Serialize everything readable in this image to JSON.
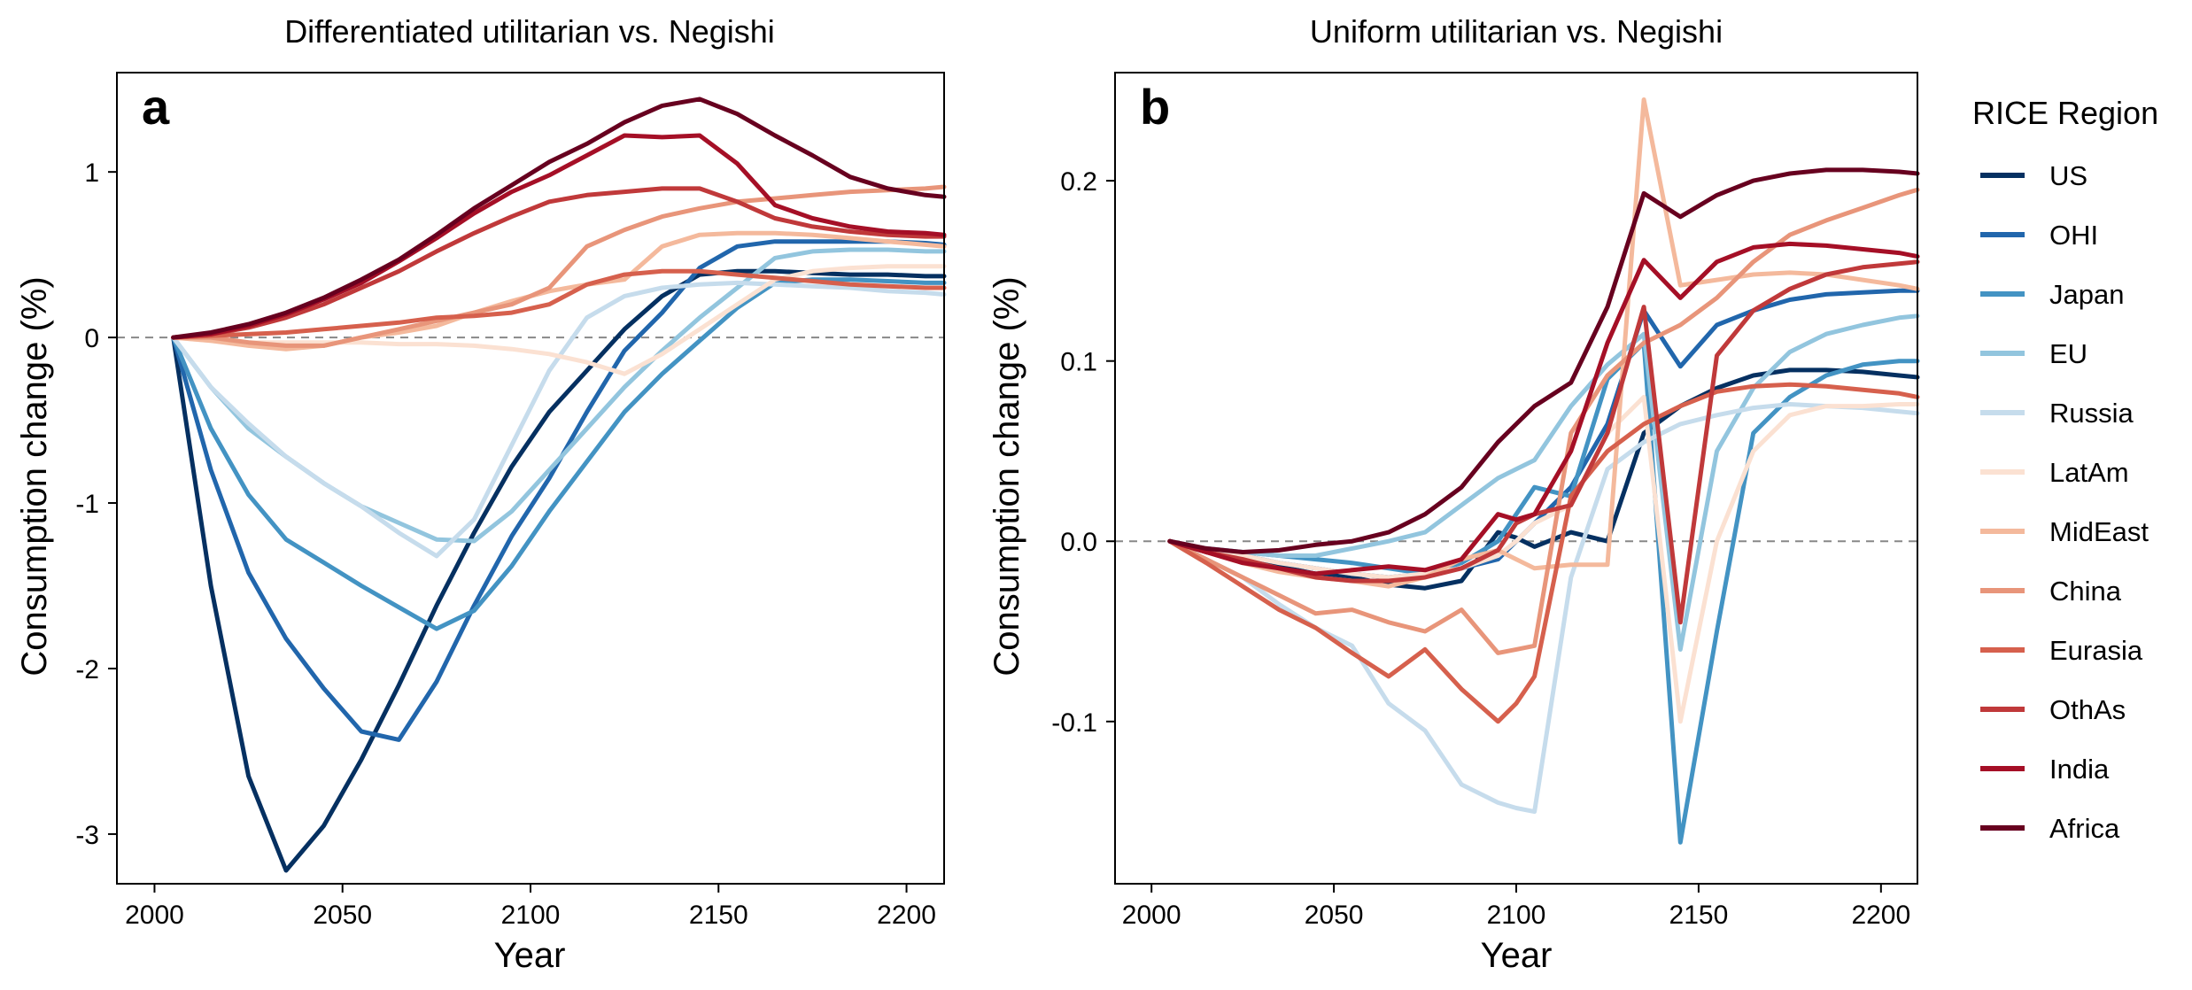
{
  "legend_title": "RICE Region",
  "chart_data": [
    {
      "type": "line",
      "panel_label": "a",
      "title": "Differentiated utilitarian vs. Negishi",
      "xlabel": "Year",
      "ylabel": "Consumption change (%)",
      "xlim": [
        1990,
        2210
      ],
      "ylim": [
        -3.3,
        1.6
      ],
      "xticks": [
        2000,
        2050,
        2100,
        2150,
        2200
      ],
      "yticks": [
        -3,
        -2,
        -1,
        0,
        1
      ],
      "ytick_labels": [
        "-3",
        "-2",
        "-1",
        "0",
        "1"
      ],
      "x": [
        2005,
        2015,
        2025,
        2035,
        2045,
        2055,
        2065,
        2075,
        2085,
        2095,
        2105,
        2115,
        2125,
        2135,
        2145,
        2155,
        2165,
        2175,
        2185,
        2195,
        2205,
        2210
      ],
      "series": [
        {
          "name": "US",
          "color": "#053061",
          "values": [
            0,
            -1.5,
            -2.65,
            -3.22,
            -2.95,
            -2.55,
            -2.1,
            -1.62,
            -1.18,
            -0.78,
            -0.45,
            -0.2,
            0.05,
            0.25,
            0.38,
            0.4,
            0.4,
            0.39,
            0.38,
            0.38,
            0.37,
            0.37
          ]
        },
        {
          "name": "OHI",
          "color": "#2166ac",
          "values": [
            0,
            -0.8,
            -1.42,
            -1.82,
            -2.12,
            -2.38,
            -2.43,
            -2.08,
            -1.62,
            -1.2,
            -0.85,
            -0.45,
            -0.08,
            0.15,
            0.42,
            0.55,
            0.58,
            0.58,
            0.58,
            0.58,
            0.57,
            0.56
          ]
        },
        {
          "name": "Japan",
          "color": "#4393c3",
          "values": [
            0,
            -0.55,
            -0.95,
            -1.22,
            -1.36,
            -1.5,
            -1.63,
            -1.76,
            -1.65,
            -1.38,
            -1.05,
            -0.75,
            -0.45,
            -0.22,
            -0.02,
            0.18,
            0.33,
            0.35,
            0.35,
            0.34,
            0.33,
            0.33
          ]
        },
        {
          "name": "EU",
          "color": "#92c5de",
          "values": [
            0,
            -0.3,
            -0.55,
            -0.72,
            -0.88,
            -1.02,
            -1.12,
            -1.22,
            -1.23,
            -1.05,
            -0.8,
            -0.55,
            -0.3,
            -0.08,
            0.12,
            0.3,
            0.48,
            0.52,
            0.53,
            0.53,
            0.52,
            0.52
          ]
        },
        {
          "name": "Russia",
          "color": "#c6dcec",
          "values": [
            0,
            -0.3,
            -0.52,
            -0.72,
            -0.88,
            -1.02,
            -1.18,
            -1.32,
            -1.1,
            -0.65,
            -0.2,
            0.12,
            0.25,
            0.3,
            0.32,
            0.33,
            0.32,
            0.31,
            0.3,
            0.28,
            0.27,
            0.26
          ]
        },
        {
          "name": "LatAm",
          "color": "#fbe1d2",
          "values": [
            0,
            -0.02,
            -0.03,
            -0.03,
            -0.03,
            -0.03,
            -0.04,
            -0.04,
            -0.05,
            -0.07,
            -0.1,
            -0.15,
            -0.22,
            -0.1,
            0.05,
            0.2,
            0.35,
            0.4,
            0.42,
            0.43,
            0.43,
            0.43
          ]
        },
        {
          "name": "MidEast",
          "color": "#f4b99c",
          "values": [
            0,
            -0.02,
            -0.05,
            -0.07,
            -0.05,
            0.0,
            0.03,
            0.07,
            0.15,
            0.22,
            0.28,
            0.32,
            0.35,
            0.55,
            0.62,
            0.63,
            0.63,
            0.62,
            0.6,
            0.58,
            0.56,
            0.55
          ]
        },
        {
          "name": "China",
          "color": "#e8957a",
          "values": [
            0,
            0.0,
            -0.03,
            -0.05,
            -0.05,
            0.0,
            0.05,
            0.1,
            0.15,
            0.2,
            0.3,
            0.55,
            0.65,
            0.73,
            0.78,
            0.82,
            0.84,
            0.86,
            0.88,
            0.89,
            0.9,
            0.91
          ]
        },
        {
          "name": "Eurasia",
          "color": "#d6604d",
          "values": [
            0,
            0.01,
            0.02,
            0.03,
            0.05,
            0.07,
            0.09,
            0.12,
            0.13,
            0.15,
            0.2,
            0.32,
            0.38,
            0.4,
            0.4,
            0.38,
            0.36,
            0.34,
            0.32,
            0.31,
            0.3,
            0.3
          ]
        },
        {
          "name": "OthAs",
          "color": "#c0393a",
          "values": [
            0,
            0.02,
            0.06,
            0.12,
            0.2,
            0.3,
            0.4,
            0.52,
            0.63,
            0.73,
            0.82,
            0.86,
            0.88,
            0.9,
            0.9,
            0.82,
            0.72,
            0.67,
            0.64,
            0.62,
            0.61,
            0.61
          ]
        },
        {
          "name": "India",
          "color": "#a50f26",
          "values": [
            0,
            0.02,
            0.07,
            0.14,
            0.23,
            0.33,
            0.46,
            0.6,
            0.75,
            0.88,
            0.98,
            1.1,
            1.22,
            1.21,
            1.22,
            1.05,
            0.8,
            0.72,
            0.67,
            0.64,
            0.63,
            0.62
          ]
        },
        {
          "name": "Africa",
          "color": "#67001f",
          "values": [
            0,
            0.03,
            0.08,
            0.15,
            0.24,
            0.35,
            0.47,
            0.62,
            0.78,
            0.92,
            1.06,
            1.17,
            1.3,
            1.4,
            1.44,
            1.35,
            1.22,
            1.1,
            0.97,
            0.9,
            0.86,
            0.85
          ]
        }
      ]
    },
    {
      "type": "line",
      "panel_label": "b",
      "title": "Uniform utilitarian vs. Negishi",
      "xlabel": "Year",
      "ylabel": "Consumption change (%)",
      "xlim": [
        1990,
        2210
      ],
      "ylim": [
        -0.19,
        0.26
      ],
      "xticks": [
        2000,
        2050,
        2100,
        2150,
        2200
      ],
      "yticks": [
        -0.1,
        0.0,
        0.1,
        0.2
      ],
      "ytick_labels": [
        "-0.1",
        "0.0",
        "0.1",
        "0.2"
      ],
      "x": [
        2005,
        2015,
        2025,
        2035,
        2045,
        2055,
        2065,
        2075,
        2085,
        2095,
        2100,
        2105,
        2115,
        2125,
        2135,
        2145,
        2155,
        2165,
        2175,
        2185,
        2195,
        2205,
        2210
      ],
      "series": [
        {
          "name": "US",
          "color": "#053061",
          "values": [
            0,
            -0.006,
            -0.01,
            -0.014,
            -0.018,
            -0.02,
            -0.024,
            -0.026,
            -0.022,
            0.005,
            0.002,
            -0.003,
            0.005,
            0.0,
            0.06,
            0.075,
            0.085,
            0.092,
            0.095,
            0.095,
            0.094,
            0.092,
            0.091
          ]
        },
        {
          "name": "OHI",
          "color": "#2166ac",
          "values": [
            0,
            -0.005,
            -0.008,
            -0.012,
            -0.015,
            -0.018,
            -0.02,
            -0.018,
            -0.015,
            -0.01,
            0.0,
            0.01,
            0.03,
            0.065,
            0.128,
            0.097,
            0.12,
            0.128,
            0.134,
            0.137,
            0.138,
            0.139,
            0.139
          ]
        },
        {
          "name": "Japan",
          "color": "#4393c3",
          "values": [
            0,
            -0.004,
            -0.006,
            -0.008,
            -0.01,
            -0.012,
            -0.015,
            -0.018,
            -0.012,
            0.0,
            0.015,
            0.03,
            0.025,
            0.09,
            0.11,
            -0.167,
            -0.05,
            0.06,
            0.08,
            0.092,
            0.098,
            0.1,
            0.1
          ]
        },
        {
          "name": "EU",
          "color": "#92c5de",
          "values": [
            0,
            -0.004,
            -0.006,
            -0.008,
            -0.008,
            -0.004,
            0.0,
            0.005,
            0.02,
            0.035,
            0.04,
            0.045,
            0.075,
            0.098,
            0.115,
            -0.06,
            0.05,
            0.085,
            0.105,
            0.115,
            0.12,
            0.124,
            0.125
          ]
        },
        {
          "name": "Russia",
          "color": "#c6dcec",
          "values": [
            0,
            -0.01,
            -0.02,
            -0.035,
            -0.048,
            -0.058,
            -0.09,
            -0.105,
            -0.135,
            -0.145,
            -0.148,
            -0.15,
            -0.02,
            0.04,
            0.055,
            0.065,
            0.07,
            0.074,
            0.076,
            0.075,
            0.074,
            0.072,
            0.071
          ]
        },
        {
          "name": "LatAm",
          "color": "#fbe1d2",
          "values": [
            0,
            -0.004,
            -0.008,
            -0.012,
            -0.015,
            -0.018,
            -0.02,
            -0.018,
            -0.015,
            -0.008,
            0.0,
            0.01,
            0.02,
            0.06,
            0.08,
            -0.1,
            0.0,
            0.05,
            0.07,
            0.075,
            0.075,
            0.076,
            0.076
          ]
        },
        {
          "name": "MidEast",
          "color": "#f4b99c",
          "values": [
            0,
            -0.006,
            -0.012,
            -0.017,
            -0.02,
            -0.022,
            -0.025,
            -0.02,
            -0.01,
            -0.005,
            -0.01,
            -0.015,
            -0.013,
            -0.013,
            0.245,
            0.142,
            0.145,
            0.148,
            0.149,
            0.148,
            0.145,
            0.142,
            0.14
          ]
        },
        {
          "name": "China",
          "color": "#e8957a",
          "values": [
            0,
            -0.01,
            -0.02,
            -0.03,
            -0.04,
            -0.038,
            -0.045,
            -0.05,
            -0.038,
            -0.062,
            -0.06,
            -0.058,
            0.06,
            0.092,
            0.11,
            0.12,
            0.135,
            0.155,
            0.17,
            0.178,
            0.185,
            0.192,
            0.195
          ]
        },
        {
          "name": "Eurasia",
          "color": "#d6604d",
          "values": [
            0,
            -0.012,
            -0.025,
            -0.038,
            -0.048,
            -0.062,
            -0.075,
            -0.06,
            -0.082,
            -0.1,
            -0.09,
            -0.075,
            0.025,
            0.05,
            0.065,
            0.075,
            0.083,
            0.086,
            0.087,
            0.086,
            0.084,
            0.082,
            0.08
          ]
        },
        {
          "name": "OthAs",
          "color": "#c0393a",
          "values": [
            0,
            -0.006,
            -0.01,
            -0.015,
            -0.02,
            -0.022,
            -0.022,
            -0.02,
            -0.015,
            -0.005,
            0.01,
            0.015,
            0.02,
            0.06,
            0.13,
            -0.045,
            0.103,
            0.128,
            0.14,
            0.148,
            0.152,
            0.154,
            0.155
          ]
        },
        {
          "name": "India",
          "color": "#a50f26",
          "values": [
            0,
            -0.006,
            -0.012,
            -0.015,
            -0.018,
            -0.016,
            -0.014,
            -0.016,
            -0.01,
            0.015,
            0.012,
            0.015,
            0.05,
            0.11,
            0.156,
            0.135,
            0.155,
            0.163,
            0.165,
            0.164,
            0.162,
            0.16,
            0.158
          ]
        },
        {
          "name": "Africa",
          "color": "#67001f",
          "values": [
            0,
            -0.004,
            -0.006,
            -0.005,
            -0.002,
            0.0,
            0.005,
            0.015,
            0.03,
            0.055,
            0.065,
            0.075,
            0.088,
            0.13,
            0.193,
            0.18,
            0.192,
            0.2,
            0.204,
            0.206,
            0.206,
            0.205,
            0.204
          ]
        }
      ]
    }
  ]
}
